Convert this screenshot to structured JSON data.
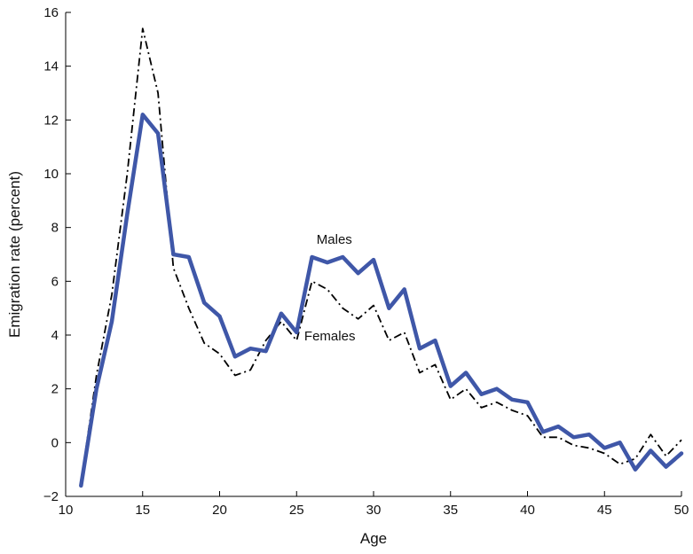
{
  "chart_data": {
    "type": "line",
    "xlabel": "Age",
    "ylabel": "Emigration rate (percent)",
    "xlim": [
      10,
      50
    ],
    "ylim": [
      -2,
      16
    ],
    "xticks": [
      10,
      15,
      20,
      25,
      30,
      35,
      40,
      45,
      50
    ],
    "yticks": [
      -2,
      0,
      2,
      4,
      6,
      8,
      10,
      12,
      14,
      16
    ],
    "ytick_labels": [
      "−2",
      "0",
      "2",
      "4",
      "6",
      "8",
      "10",
      "12",
      "14",
      "16"
    ],
    "grid": false,
    "x": [
      11,
      12,
      13,
      14,
      15,
      16,
      17,
      18,
      19,
      20,
      21,
      22,
      23,
      24,
      25,
      26,
      27,
      28,
      29,
      30,
      31,
      32,
      33,
      34,
      35,
      36,
      37,
      38,
      39,
      40,
      41,
      42,
      43,
      44,
      45,
      46,
      47,
      48,
      49,
      50
    ],
    "series": [
      {
        "name": "Males",
        "color": "#3f57a8",
        "style": "solid",
        "values": [
          -1.6,
          2.0,
          4.5,
          8.5,
          12.2,
          11.5,
          7.0,
          6.9,
          5.2,
          4.7,
          3.2,
          3.5,
          3.4,
          4.8,
          4.1,
          6.9,
          6.7,
          6.9,
          6.3,
          6.8,
          5.0,
          5.7,
          3.5,
          3.8,
          2.1,
          2.6,
          1.8,
          2.0,
          1.6,
          1.5,
          0.4,
          0.6,
          0.2,
          0.3,
          -0.2,
          0.0,
          -1.0,
          -0.3,
          -0.9,
          -0.4
        ]
      },
      {
        "name": "Females",
        "color": "#000000",
        "style": "dashdot",
        "values": [
          -1.5,
          2.5,
          5.5,
          10.0,
          15.4,
          13.0,
          6.5,
          5.0,
          3.7,
          3.3,
          2.5,
          2.7,
          3.8,
          4.5,
          3.8,
          6.0,
          5.7,
          5.0,
          4.6,
          5.1,
          3.8,
          4.1,
          2.6,
          2.9,
          1.6,
          2.0,
          1.3,
          1.5,
          1.2,
          1.0,
          0.2,
          0.2,
          -0.1,
          -0.2,
          -0.4,
          -0.8,
          -0.6,
          0.3,
          -0.5,
          0.1
        ]
      }
    ],
    "annotations": [
      {
        "text": "Males",
        "x": 26.3,
        "y": 7.4
      },
      {
        "text": "Females",
        "x": 25.5,
        "y": 3.8
      }
    ]
  }
}
